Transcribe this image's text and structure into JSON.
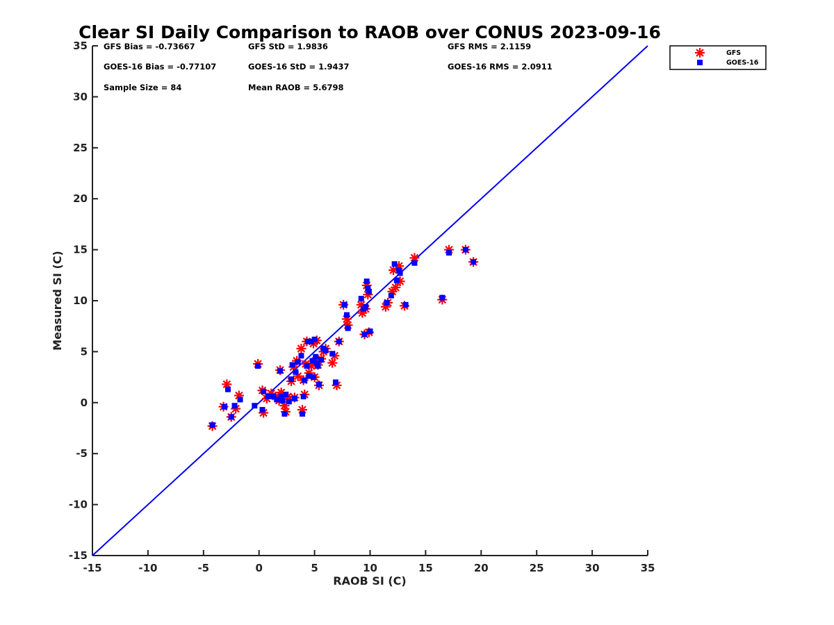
{
  "chart_data": {
    "type": "scatter",
    "title": "Clear SI Daily Comparison to RAOB over CONUS 2023-09-16",
    "xlabel": "RAOB SI (C)",
    "ylabel": "Measured SI (C)",
    "xlim": [
      -15,
      35
    ],
    "ylim": [
      -15,
      35
    ],
    "xticks": [
      -15,
      -10,
      -5,
      0,
      5,
      10,
      15,
      20,
      25,
      30,
      35
    ],
    "yticks": [
      -15,
      -10,
      -5,
      0,
      5,
      10,
      15,
      20,
      25,
      30,
      35
    ],
    "grid": false,
    "legend_position": "outside-top-right",
    "reference_line": {
      "type": "one-to-one",
      "color": "#0000ff"
    },
    "stats": {
      "gfs_bias": "GFS Bias = -0.73667",
      "gfs_std": "GFS StD = 1.9836",
      "gfs_rms": "GFS RMS = 2.1159",
      "goes_bias": "GOES-16 Bias = -0.77107",
      "goes_std": "GOES-16 StD = 1.9437",
      "goes_rms": "GOES-16 RMS = 2.0911",
      "sample_size": "Sample Size = 84",
      "mean_raob": "Mean RAOB = 5.6798"
    },
    "series": [
      {
        "name": "GFS",
        "marker": "asterisk",
        "color": "#ff0000",
        "points": [
          [
            -4.2,
            -2.3
          ],
          [
            -3.2,
            -0.4
          ],
          [
            -2.9,
            1.8
          ],
          [
            -2.5,
            -1.4
          ],
          [
            -2.1,
            -0.6
          ],
          [
            -1.8,
            0.7
          ],
          [
            -0.1,
            3.8
          ],
          [
            0.3,
            1.2
          ],
          [
            0.4,
            -1.0
          ],
          [
            0.7,
            0.4
          ],
          [
            1.1,
            0.9
          ],
          [
            1.5,
            0.6
          ],
          [
            1.8,
            0.2
          ],
          [
            1.9,
            3.2
          ],
          [
            2.0,
            1.0
          ],
          [
            2.2,
            0.3
          ],
          [
            2.3,
            -0.3
          ],
          [
            2.4,
            -0.9
          ],
          [
            2.6,
            0.6
          ],
          [
            2.9,
            2.1
          ],
          [
            3.1,
            3.5
          ],
          [
            3.2,
            0.5
          ],
          [
            3.4,
            4.1
          ],
          [
            3.5,
            2.6
          ],
          [
            3.8,
            5.3
          ],
          [
            3.9,
            -0.7
          ],
          [
            4.0,
            2.2
          ],
          [
            4.1,
            0.8
          ],
          [
            4.2,
            3.8
          ],
          [
            4.3,
            6.0
          ],
          [
            4.5,
            2.9
          ],
          [
            4.7,
            3.6
          ],
          [
            4.9,
            5.8
          ],
          [
            5.0,
            2.5
          ],
          [
            5.1,
            4.1
          ],
          [
            5.2,
            6.1
          ],
          [
            5.3,
            3.7
          ],
          [
            5.4,
            1.7
          ],
          [
            5.6,
            4.3
          ],
          [
            5.8,
            5.0
          ],
          [
            6.0,
            5.3
          ],
          [
            6.6,
            3.9
          ],
          [
            6.8,
            4.6
          ],
          [
            7.0,
            1.7
          ],
          [
            7.2,
            6.0
          ],
          [
            7.6,
            9.6
          ],
          [
            7.9,
            8.2
          ],
          [
            8.0,
            7.6
          ],
          [
            9.2,
            9.6
          ],
          [
            9.3,
            8.8
          ],
          [
            9.5,
            6.7
          ],
          [
            9.6,
            9.2
          ],
          [
            9.7,
            11.5
          ],
          [
            9.8,
            10.6
          ],
          [
            9.9,
            6.9
          ],
          [
            11.4,
            9.4
          ],
          [
            11.6,
            9.8
          ],
          [
            12.0,
            10.9
          ],
          [
            12.1,
            13.0
          ],
          [
            12.3,
            11.3
          ],
          [
            12.6,
            13.4
          ],
          [
            12.7,
            11.9
          ],
          [
            13.1,
            9.5
          ],
          [
            14.0,
            14.2
          ],
          [
            16.5,
            10.1
          ],
          [
            17.1,
            15.0
          ],
          [
            18.6,
            15.0
          ],
          [
            19.3,
            13.8
          ]
        ]
      },
      {
        "name": "GOES-16",
        "marker": "square",
        "color": "#0000ff",
        "points": [
          [
            -4.2,
            -2.2
          ],
          [
            -3.1,
            -0.4
          ],
          [
            -2.8,
            1.3
          ],
          [
            -2.5,
            -1.4
          ],
          [
            -2.2,
            -0.3
          ],
          [
            -1.7,
            0.3
          ],
          [
            -0.4,
            -0.3
          ],
          [
            -0.1,
            3.6
          ],
          [
            0.3,
            -0.7
          ],
          [
            0.4,
            1.1
          ],
          [
            0.8,
            0.6
          ],
          [
            1.3,
            0.6
          ],
          [
            1.6,
            0.3
          ],
          [
            1.9,
            3.1
          ],
          [
            2.0,
            0.6
          ],
          [
            2.1,
            0.2
          ],
          [
            2.3,
            -1.1
          ],
          [
            2.4,
            0.8
          ],
          [
            2.7,
            0.1
          ],
          [
            2.9,
            2.3
          ],
          [
            3.0,
            3.7
          ],
          [
            3.2,
            0.4
          ],
          [
            3.3,
            3.0
          ],
          [
            3.5,
            4.0
          ],
          [
            3.8,
            4.6
          ],
          [
            3.9,
            -1.1
          ],
          [
            4.0,
            0.6
          ],
          [
            4.1,
            2.2
          ],
          [
            4.3,
            3.6
          ],
          [
            4.4,
            6.0
          ],
          [
            4.5,
            2.6
          ],
          [
            4.7,
            6.0
          ],
          [
            4.8,
            4.1
          ],
          [
            4.9,
            2.5
          ],
          [
            5.0,
            6.2
          ],
          [
            5.1,
            4.5
          ],
          [
            5.2,
            3.9
          ],
          [
            5.3,
            3.6
          ],
          [
            5.4,
            1.8
          ],
          [
            5.6,
            4.2
          ],
          [
            5.8,
            5.3
          ],
          [
            6.0,
            5.1
          ],
          [
            6.6,
            4.8
          ],
          [
            6.9,
            2.0
          ],
          [
            7.2,
            6.0
          ],
          [
            7.7,
            9.6
          ],
          [
            7.9,
            8.6
          ],
          [
            8.0,
            7.3
          ],
          [
            9.2,
            10.2
          ],
          [
            9.4,
            9.2
          ],
          [
            9.5,
            6.7
          ],
          [
            9.6,
            9.4
          ],
          [
            9.7,
            11.9
          ],
          [
            9.8,
            11.2
          ],
          [
            9.9,
            10.9
          ],
          [
            10.0,
            7.0
          ],
          [
            11.5,
            9.8
          ],
          [
            11.9,
            10.5
          ],
          [
            12.2,
            13.6
          ],
          [
            12.4,
            12.0
          ],
          [
            12.6,
            13.0
          ],
          [
            12.7,
            12.7
          ],
          [
            13.2,
            9.6
          ],
          [
            14.0,
            13.7
          ],
          [
            16.5,
            10.3
          ],
          [
            17.1,
            14.7
          ],
          [
            18.6,
            15.0
          ],
          [
            19.3,
            13.8
          ]
        ]
      }
    ]
  }
}
